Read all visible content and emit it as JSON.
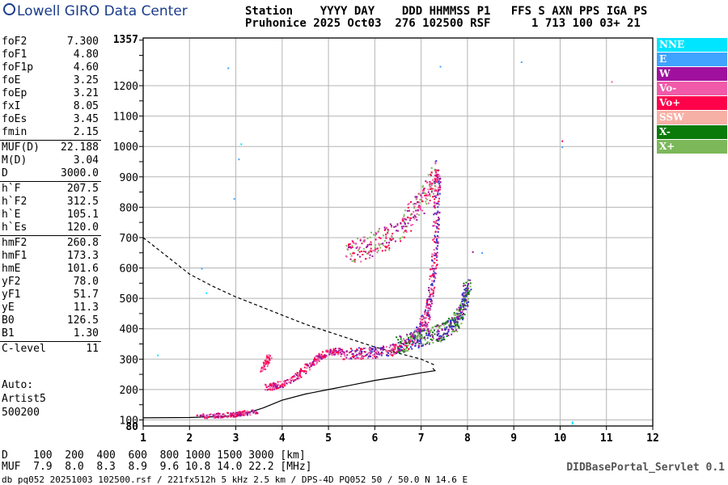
{
  "header": {
    "logo": "Lowell GIRO Data Center",
    "line1": "Station    YYYY DAY    DDD HHMMSS P1   FFS S AXN PPS IGA PS",
    "line2": "Pruhonice 2025 Oct03  276 102500 RSF      1 713 100 03+ 21"
  },
  "params": {
    "group1": [
      {
        "label": "foF2",
        "value": "7.300"
      },
      {
        "label": "foF1",
        "value": "4.80"
      },
      {
        "label": "foF1p",
        "value": "4.60"
      },
      {
        "label": "foE",
        "value": "3.25"
      },
      {
        "label": "foEp",
        "value": "3.21"
      },
      {
        "label": "fxI",
        "value": "8.05"
      },
      {
        "label": "foEs",
        "value": "3.45"
      },
      {
        "label": "fmin",
        "value": "2.15"
      }
    ],
    "group2": [
      {
        "label": "MUF(D)",
        "value": "22.188"
      },
      {
        "label": "M(D)",
        "value": "3.04"
      },
      {
        "label": "D",
        "value": "3000.0"
      }
    ],
    "group3": [
      {
        "label": "h`F",
        "value": "207.5"
      },
      {
        "label": "h`F2",
        "value": "312.5"
      },
      {
        "label": "h`E",
        "value": "105.1"
      },
      {
        "label": "h`Es",
        "value": "120.0"
      }
    ],
    "group4": [
      {
        "label": "hmF2",
        "value": "260.8"
      },
      {
        "label": "hmF1",
        "value": "173.3"
      },
      {
        "label": "hmE",
        "value": "101.6"
      },
      {
        "label": "yF2",
        "value": "78.0"
      },
      {
        "label": "yF1",
        "value": "51.7"
      },
      {
        "label": "yE",
        "value": "11.3"
      },
      {
        "label": "B0",
        "value": "126.5"
      },
      {
        "label": "B1",
        "value": "1.30"
      }
    ],
    "group5": [
      {
        "label": "C-level",
        "value": "11"
      }
    ]
  },
  "auto": {
    "line1": "Auto:",
    "line2": "Artist5",
    "line3": "500200"
  },
  "legend": [
    {
      "label": "NNE",
      "color": "#00e5ff"
    },
    {
      "label": "E",
      "color": "#3fa3ff"
    },
    {
      "label": "W",
      "color": "#a0109e"
    },
    {
      "label": "Vo-",
      "color": "#f05aa8"
    },
    {
      "label": "Vo+",
      "color": "#ff004a"
    },
    {
      "label": "SSW",
      "color": "#f7b0a6"
    },
    {
      "label": "X-",
      "color": "#0a7a0a"
    },
    {
      "label": "X+",
      "color": "#7cb85a"
    }
  ],
  "muf_table": {
    "row1": "D    100  200  400  600  800 1000 1500 3000 [km]",
    "row2": "MUF  7.9  8.0  8.3  8.9  9.6 10.8 14.0 22.2 [MHz]"
  },
  "footer": "db pq052 20251003 102500.rsf / 221fx512h 5 kHz 2.5 km / DPS-4D PQ052 50 / 50.0 N 14.6 E",
  "portal": "DIDBasePortal_Servlet 0.1",
  "chart_data": {
    "type": "scatter",
    "xlim": [
      1,
      12
    ],
    "ylim": [
      80,
      1357
    ],
    "x_ticks": [
      1,
      2,
      3,
      4,
      5,
      6,
      7,
      8,
      9,
      10,
      11,
      12
    ],
    "y_ticks": [
      100,
      200,
      300,
      400,
      500,
      600,
      700,
      800,
      900,
      1000,
      1100,
      1200
    ],
    "y_extra_labels": [
      "80",
      "1357"
    ],
    "grid": true,
    "traces": {
      "o_trace_E": [
        [
          2.15,
          115
        ],
        [
          2.5,
          116
        ],
        [
          2.8,
          118
        ],
        [
          3.0,
          120
        ],
        [
          3.2,
          125
        ],
        [
          3.45,
          128
        ]
      ],
      "o_trace_F1": [
        [
          3.65,
          210
        ],
        [
          3.8,
          212
        ],
        [
          4.0,
          222
        ],
        [
          4.3,
          245
        ],
        [
          4.6,
          285
        ],
        [
          4.8,
          310
        ],
        [
          5.0,
          325
        ],
        [
          5.3,
          330
        ]
      ],
      "o_trace_F2": [
        [
          5.3,
          320
        ],
        [
          5.8,
          322
        ],
        [
          6.2,
          328
        ],
        [
          6.6,
          345
        ],
        [
          6.9,
          380
        ],
        [
          7.1,
          440
        ],
        [
          7.2,
          520
        ],
        [
          7.28,
          640
        ],
        [
          7.32,
          800
        ],
        [
          7.35,
          950
        ]
      ],
      "x_trace_F2": [
        [
          6.5,
          350
        ],
        [
          7.0,
          370
        ],
        [
          7.4,
          390
        ],
        [
          7.7,
          420
        ],
        [
          7.9,
          470
        ],
        [
          8.0,
          550
        ]
      ],
      "spread_F": [
        [
          5.4,
          650
        ],
        [
          5.8,
          670
        ],
        [
          6.2,
          700
        ],
        [
          6.6,
          740
        ],
        [
          6.9,
          800
        ],
        [
          7.1,
          850
        ],
        [
          7.3,
          900
        ]
      ],
      "es_trace": [
        [
          3.55,
          270
        ],
        [
          3.65,
          290
        ],
        [
          3.72,
          315
        ]
      ]
    },
    "profile_solid": [
      [
        1,
        107
      ],
      [
        2,
        108
      ],
      [
        2.8,
        112
      ],
      [
        3.3,
        125
      ],
      [
        3.6,
        140
      ],
      [
        4.0,
        165
      ],
      [
        4.5,
        185
      ],
      [
        5.0,
        200
      ],
      [
        5.5,
        215
      ],
      [
        6.0,
        230
      ],
      [
        6.5,
        242
      ],
      [
        7.0,
        255
      ],
      [
        7.3,
        262
      ],
      [
        7.25,
        270
      ]
    ],
    "profile_dashed": [
      [
        1,
        700
      ],
      [
        1.5,
        640
      ],
      [
        2,
        580
      ],
      [
        2.5,
        540
      ],
      [
        3,
        505
      ],
      [
        3.5,
        475
      ],
      [
        4,
        445
      ],
      [
        4.5,
        415
      ],
      [
        5,
        390
      ],
      [
        5.5,
        365
      ],
      [
        6,
        340
      ],
      [
        6.5,
        320
      ],
      [
        7,
        300
      ],
      [
        7.3,
        280
      ]
    ],
    "outliers": [
      {
        "x": 2.82,
        "y": 1260,
        "color": "#3fa3ff"
      },
      {
        "x": 7.4,
        "y": 1265,
        "color": "#3fa3ff"
      },
      {
        "x": 9.15,
        "y": 1280,
        "color": "#3fa3ff"
      },
      {
        "x": 10.03,
        "y": 1020,
        "color": "#ff004a"
      },
      {
        "x": 10.03,
        "y": 1000,
        "color": "#3fa3ff"
      },
      {
        "x": 11.1,
        "y": 1215,
        "color": "#f05aa8"
      },
      {
        "x": 2.25,
        "y": 600,
        "color": "#3fa3ff"
      },
      {
        "x": 2.35,
        "y": 520,
        "color": "#00e5ff"
      },
      {
        "x": 1.3,
        "y": 315,
        "color": "#00e5ff"
      },
      {
        "x": 8.1,
        "y": 655,
        "color": "#a0109e"
      },
      {
        "x": 8.3,
        "y": 652,
        "color": "#3fa3ff"
      },
      {
        "x": 10.25,
        "y": 95,
        "color": "#00e5ff"
      },
      {
        "x": 10.25,
        "y": 90,
        "color": "#00e5ff"
      },
      {
        "x": 3.05,
        "y": 960,
        "color": "#3fa3ff"
      },
      {
        "x": 3.1,
        "y": 1010,
        "color": "#00e5ff"
      },
      {
        "x": 2.95,
        "y": 830,
        "color": "#3fa3ff"
      }
    ]
  }
}
